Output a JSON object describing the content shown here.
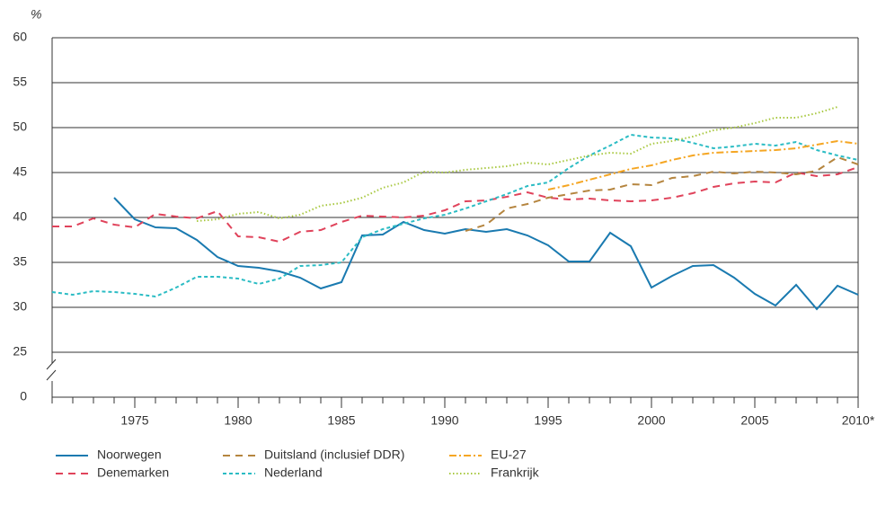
{
  "chart_data": {
    "type": "line",
    "y_label": "%",
    "x": [
      1971,
      1972,
      1973,
      1974,
      1975,
      1976,
      1977,
      1978,
      1979,
      1980,
      1981,
      1982,
      1983,
      1984,
      1985,
      1986,
      1987,
      1988,
      1989,
      1990,
      1991,
      1992,
      1993,
      1994,
      1995,
      1996,
      1997,
      1998,
      1999,
      2000,
      2001,
      2002,
      2003,
      2004,
      2005,
      2006,
      2007,
      2008,
      2009,
      2010
    ],
    "xlim": [
      1971,
      2010
    ],
    "xticks": [
      1975,
      1980,
      1985,
      1990,
      1995,
      2000,
      2005,
      {
        "value": 2010,
        "label": "2010*"
      }
    ],
    "ylim": [
      0,
      60
    ],
    "y_break": [
      0,
      25
    ],
    "yticks": [
      0,
      25,
      30,
      35,
      40,
      45,
      50,
      55,
      60
    ],
    "grid": true,
    "legend": "bottom",
    "series": [
      {
        "name": "Noorwegen",
        "color": "#1a7ab0",
        "style": "solid",
        "values": [
          null,
          null,
          null,
          42.2,
          39.8,
          38.9,
          38.8,
          37.5,
          35.6,
          34.6,
          34.4,
          34.0,
          33.3,
          32.1,
          32.8,
          38.0,
          38.1,
          39.5,
          38.6,
          38.2,
          38.7,
          38.4,
          38.7,
          38.0,
          36.9,
          35.1,
          35.1,
          38.3,
          36.8,
          32.2,
          33.5,
          34.6,
          34.7,
          33.3,
          31.5,
          30.2,
          32.5,
          29.8,
          32.4,
          31.4
        ]
      },
      {
        "name": "Denemarken",
        "color": "#e0435b",
        "style": "dashed",
        "values": [
          39.0,
          39.0,
          39.9,
          39.2,
          38.9,
          40.4,
          40.1,
          39.9,
          40.7,
          37.9,
          37.8,
          37.3,
          38.4,
          38.6,
          39.5,
          40.2,
          40.1,
          40.0,
          40.2,
          40.8,
          41.8,
          41.9,
          42.3,
          42.8,
          42.2,
          42.0,
          42.1,
          41.9,
          41.8,
          41.9,
          42.2,
          42.7,
          43.4,
          43.8,
          44.0,
          43.9,
          45.0,
          44.6,
          44.8,
          45.6
        ]
      },
      {
        "name": "Duitsland (inclusief DDR)",
        "color": "#b5853f",
        "style": "dashed",
        "values": [
          null,
          null,
          null,
          null,
          null,
          null,
          null,
          null,
          null,
          null,
          null,
          null,
          null,
          null,
          null,
          null,
          null,
          null,
          null,
          null,
          38.5,
          39.2,
          41.0,
          41.5,
          42.2,
          42.6,
          43.0,
          43.1,
          43.7,
          43.6,
          44.4,
          44.6,
          45.1,
          44.9,
          45.1,
          45.0,
          44.8,
          45.2,
          46.7,
          45.9
        ]
      },
      {
        "name": "Nederland",
        "color": "#2bbcc4",
        "style": "shortdash",
        "values": [
          31.7,
          31.4,
          31.8,
          31.7,
          31.5,
          31.2,
          32.2,
          33.4,
          33.4,
          33.2,
          32.6,
          33.2,
          34.6,
          34.7,
          35.0,
          37.8,
          38.7,
          39.3,
          39.9,
          40.3,
          41.0,
          41.8,
          42.6,
          43.5,
          43.9,
          45.5,
          46.9,
          48.0,
          49.2,
          48.9,
          48.8,
          48.3,
          47.7,
          47.9,
          48.2,
          48.0,
          48.4,
          47.5,
          46.9,
          46.4
        ]
      },
      {
        "name": "EU-27",
        "color": "#f5a623",
        "style": "dashdot",
        "values": [
          null,
          null,
          null,
          null,
          null,
          null,
          null,
          null,
          null,
          null,
          null,
          null,
          null,
          null,
          null,
          null,
          null,
          null,
          null,
          null,
          null,
          null,
          null,
          null,
          43.1,
          43.6,
          44.2,
          44.8,
          45.4,
          45.8,
          46.4,
          46.9,
          47.2,
          47.3,
          47.4,
          47.5,
          47.7,
          48.1,
          48.5,
          48.2
        ]
      },
      {
        "name": "Frankrijk",
        "color": "#a8c840",
        "style": "dotted",
        "values": [
          null,
          null,
          null,
          null,
          null,
          null,
          null,
          39.6,
          39.8,
          40.4,
          40.6,
          39.9,
          40.3,
          41.3,
          41.6,
          42.2,
          43.3,
          43.9,
          45.1,
          45.0,
          45.3,
          45.5,
          45.7,
          46.1,
          45.9,
          46.4,
          46.9,
          47.2,
          47.1,
          48.2,
          48.5,
          49.0,
          49.7,
          50.0,
          50.5,
          51.1,
          51.1,
          51.6,
          52.3,
          null
        ]
      }
    ]
  }
}
